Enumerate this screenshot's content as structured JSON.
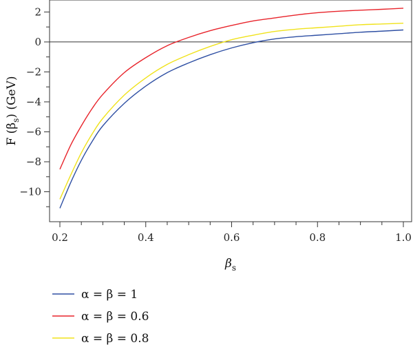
{
  "chart_data": {
    "type": "line",
    "xlabel": "β",
    "xlabel_sub": "s",
    "ylabel": "F (β",
    "ylabel_sub": "s",
    "ylabel_rest": ") (GeV)",
    "xlim": [
      0.2,
      1.0
    ],
    "ylim": [
      -12,
      2.8
    ],
    "xticks": [
      0.2,
      0.4,
      0.6,
      0.8,
      1.0
    ],
    "xtick_labels": [
      "0.2",
      "0.4",
      "0.6",
      "0.8",
      "1.0"
    ],
    "yticks": [
      2,
      0,
      -2,
      -4,
      -6,
      -8,
      -10
    ],
    "ytick_labels": [
      "2",
      "0",
      "−2",
      "−4",
      "−6",
      "−8",
      "−10"
    ],
    "grid": false,
    "reference_line_y": 0,
    "legend_position": "bottom-left, below plot",
    "x": [
      0.2,
      0.225,
      0.25,
      0.275,
      0.3,
      0.35,
      0.4,
      0.45,
      0.5,
      0.55,
      0.6,
      0.65,
      0.7,
      0.75,
      0.8,
      0.85,
      0.9,
      0.95,
      1.0
    ],
    "series": [
      {
        "name": "α = β = 1",
        "color": "#2e4fa3",
        "values": [
          -11.1,
          -9.4,
          -7.9,
          -6.65,
          -5.6,
          -4.1,
          -2.95,
          -2.05,
          -1.4,
          -0.85,
          -0.4,
          -0.05,
          0.2,
          0.35,
          0.45,
          0.55,
          0.65,
          0.72,
          0.8
        ]
      },
      {
        "name": "α = β = 0.6",
        "color": "#e8232a",
        "values": [
          -8.5,
          -6.9,
          -5.6,
          -4.45,
          -3.5,
          -2.05,
          -1.05,
          -0.25,
          0.3,
          0.75,
          1.1,
          1.4,
          1.6,
          1.8,
          1.95,
          2.05,
          2.12,
          2.18,
          2.25
        ]
      },
      {
        "name": "α = β = 0.8",
        "color": "#f0e21a",
        "values": [
          -10.5,
          -8.9,
          -7.4,
          -6.15,
          -5.1,
          -3.55,
          -2.4,
          -1.5,
          -0.85,
          -0.3,
          0.15,
          0.45,
          0.7,
          0.85,
          0.95,
          1.05,
          1.15,
          1.2,
          1.25
        ]
      }
    ],
    "legend": [
      {
        "label": "α = β = 1",
        "color": "#2e4fa3"
      },
      {
        "label": "α = β = 0.6",
        "color": "#e8232a"
      },
      {
        "label": "α = β = 0.8",
        "color": "#f0e21a"
      }
    ]
  }
}
